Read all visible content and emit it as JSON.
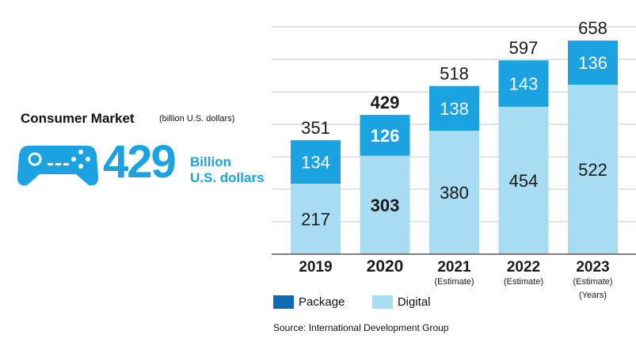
{
  "headline": {
    "title": "Consumer Market",
    "unit": "(billion U.S. dollars)",
    "big_value": "429",
    "big_unit_line1": "Billion",
    "big_unit_line2": "U.S. dollars"
  },
  "colors": {
    "package": "#1aa3e0",
    "digital": "#a8dcf2",
    "accent": "#1aa3e0",
    "legend_package": "#0b6cb5"
  },
  "icon": "gamepad-icon",
  "chart_data": {
    "type": "bar",
    "stacked": true,
    "categories": [
      "2019",
      "2020",
      "2021",
      "2022",
      "2023"
    ],
    "category_notes": [
      "",
      "",
      "(Estimate)",
      "(Estimate)",
      "(Estimate)"
    ],
    "axis_note": "(Years)",
    "highlight_category": "2020",
    "series": [
      {
        "name": "Digital",
        "values": [
          217,
          303,
          380,
          454,
          522
        ]
      },
      {
        "name": "Package",
        "values": [
          134,
          126,
          138,
          143,
          136
        ]
      }
    ],
    "totals": [
      351,
      429,
      518,
      597,
      658
    ],
    "ylim": [
      0,
      700
    ],
    "grid": true,
    "legend_position": "bottom-left"
  },
  "legend": {
    "package_label": "Package",
    "digital_label": "Digital"
  },
  "source": "Source: International Development Group"
}
